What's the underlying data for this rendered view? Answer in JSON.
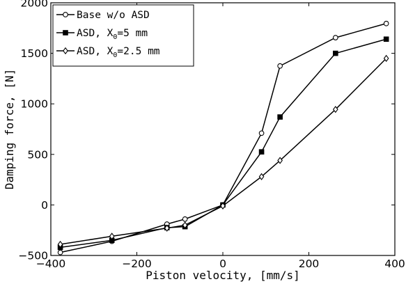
{
  "chart_data": {
    "type": "line",
    "title": "",
    "xlabel": "Piston velocity, [mm/s]",
    "ylabel": "Damping force, [N]",
    "xlim": [
      -400,
      400
    ],
    "ylim": [
      -500,
      2000
    ],
    "xticks": [
      -400,
      -200,
      0,
      200,
      400
    ],
    "yticks": [
      -500,
      0,
      500,
      1000,
      1500,
      2000
    ],
    "xtick_labels": [
      "−400",
      "−200",
      "0",
      "200",
      "400"
    ],
    "ytick_labels": [
      "−500",
      "0",
      "500",
      "1000",
      "1500",
      "2000"
    ],
    "grid": false,
    "legend_position": "top-left",
    "series": [
      {
        "name": "Base w/o ASD",
        "legend": {
          "pre": "Base w/o ASD",
          "sub": "",
          "post": ""
        },
        "marker": "circle",
        "color": "#000000",
        "points": [
          [
            -378,
            -470
          ],
          [
            -258,
            -360
          ],
          [
            -130,
            -190
          ],
          [
            -88,
            -140
          ],
          [
            0,
            0
          ],
          [
            90,
            710
          ],
          [
            133,
            1375
          ],
          [
            262,
            1655
          ],
          [
            380,
            1795
          ]
        ]
      },
      {
        "name": "ASD, X0=5 mm",
        "legend": {
          "pre": "ASD, X",
          "sub": "0",
          "post": "=5 mm"
        },
        "marker": "square",
        "color": "#000000",
        "points": [
          [
            -378,
            -420
          ],
          [
            -258,
            -350
          ],
          [
            -130,
            -225
          ],
          [
            -88,
            -215
          ],
          [
            0,
            0
          ],
          [
            90,
            525
          ],
          [
            133,
            870
          ],
          [
            262,
            1500
          ],
          [
            380,
            1640
          ]
        ]
      },
      {
        "name": "ASD, X0=2.5 mm",
        "legend": {
          "pre": "ASD, X",
          "sub": "0",
          "post": "=2.5 mm"
        },
        "marker": "diamond",
        "color": "#000000",
        "points": [
          [
            -378,
            -390
          ],
          [
            -258,
            -310
          ],
          [
            -130,
            -230
          ],
          [
            -88,
            -200
          ],
          [
            0,
            -10
          ],
          [
            90,
            280
          ],
          [
            133,
            440
          ],
          [
            262,
            945
          ],
          [
            380,
            1450
          ]
        ]
      }
    ]
  }
}
